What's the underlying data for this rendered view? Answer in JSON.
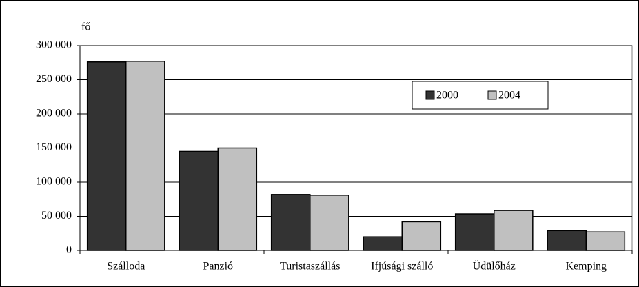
{
  "chart_data": {
    "type": "bar",
    "unit_label": "fő",
    "categories": [
      "Szálloda",
      "Panzió",
      "Turistaszállás",
      "Ifjúsági szálló",
      "Üdülőház",
      "Kemping"
    ],
    "series": [
      {
        "name": "2000",
        "color": "#333333",
        "values": [
          276000,
          145000,
          82000,
          20000,
          53500,
          29000
        ]
      },
      {
        "name": "2004",
        "color": "#c0c0c0",
        "values": [
          277000,
          150000,
          81000,
          42000,
          58500,
          27000
        ]
      }
    ],
    "ylim": [
      0,
      300000
    ],
    "yticks": [
      0,
      {
        "value": 50000,
        "label": "50 000"
      },
      {
        "value": 100000,
        "label": "100 000"
      },
      {
        "value": 150000,
        "label": "150 000"
      },
      {
        "value": 200000,
        "label": "200 000"
      },
      {
        "value": 250000,
        "label": "250 000"
      },
      {
        "value": 300000,
        "label": "300 000"
      }
    ],
    "grid": true,
    "legend": "upper right"
  }
}
